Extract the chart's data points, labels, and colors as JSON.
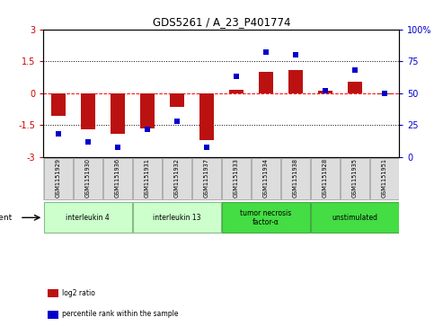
{
  "title": "GDS5261 / A_23_P401774",
  "samples": [
    "GSM1151929",
    "GSM1151930",
    "GSM1151936",
    "GSM1151931",
    "GSM1151932",
    "GSM1151937",
    "GSM1151933",
    "GSM1151934",
    "GSM1151938",
    "GSM1151928",
    "GSM1151935",
    "GSM1151951"
  ],
  "log2_ratio": [
    -1.05,
    -1.7,
    -1.9,
    -1.65,
    -0.65,
    -2.2,
    0.15,
    1.0,
    1.1,
    0.1,
    0.55,
    -0.05
  ],
  "percentile_rank": [
    18,
    12,
    8,
    22,
    28,
    8,
    63,
    82,
    80,
    52,
    68,
    50
  ],
  "ylim_left": [
    -3,
    3
  ],
  "ylim_right": [
    0,
    100
  ],
  "yticks_left": [
    -3,
    -1.5,
    0,
    1.5,
    3
  ],
  "yticks_right": [
    0,
    25,
    50,
    75,
    100
  ],
  "yticklabels_left": [
    "-3",
    "-1.5",
    "0",
    "1.5",
    "3"
  ],
  "yticklabels_right": [
    "0",
    "25",
    "50",
    "75",
    "100%"
  ],
  "bar_color": "#bb1111",
  "dot_color": "#0000cc",
  "bar_width": 0.5,
  "dot_size": 18,
  "groups": [
    {
      "label": "interleukin 4",
      "indices": [
        0,
        1,
        2
      ],
      "color": "#ccffcc",
      "border": "#88bb88"
    },
    {
      "label": "interleukin 13",
      "indices": [
        3,
        4,
        5
      ],
      "color": "#ccffcc",
      "border": "#88bb88"
    },
    {
      "label": "tumor necrosis\nfactor-α",
      "indices": [
        6,
        7,
        8
      ],
      "color": "#44dd44",
      "border": "#44aa44"
    },
    {
      "label": "unstimulated",
      "indices": [
        9,
        10,
        11
      ],
      "color": "#44dd44",
      "border": "#44aa44"
    }
  ],
  "agent_label": "agent",
  "legend_items": [
    {
      "label": "log2 ratio",
      "color": "#bb1111"
    },
    {
      "label": "percentile rank within the sample",
      "color": "#0000cc"
    }
  ],
  "bg_color": "#ffffff",
  "sample_box_color": "#cccccc",
  "sample_box_border": "#aaaaaa"
}
